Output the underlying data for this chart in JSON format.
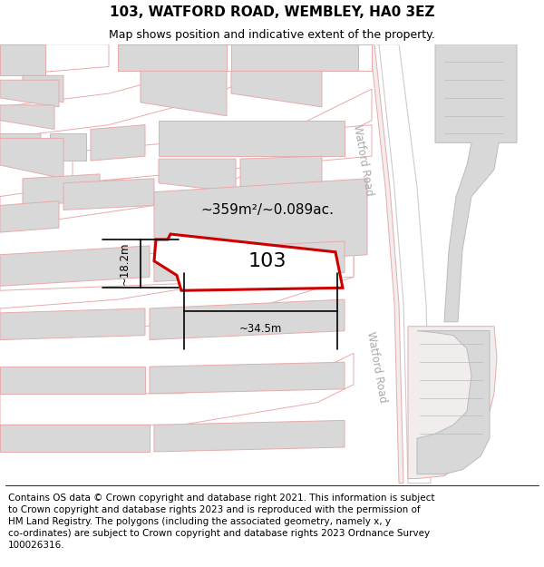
{
  "title": "103, WATFORD ROAD, WEMBLEY, HA0 3EZ",
  "subtitle": "Map shows position and indicative extent of the property.",
  "footer": "Contains OS data © Crown copyright and database right 2021. This information is subject\nto Crown copyright and database rights 2023 and is reproduced with the permission of\nHM Land Registry. The polygons (including the associated geometry, namely x, y\nco-ordinates) are subject to Crown copyright and database rights 2023 Ordnance Survey\n100026316.",
  "bg_color": "#f2eded",
  "road_fill": "#ffffff",
  "road_stroke": "#e8aaaa",
  "bld_fill": "#d8d8d8",
  "bld_stroke": "#d8aaaa",
  "bld_stroke2": "#bbbbbb",
  "plot_color": "#cc0000",
  "watford_road_label": "Watford Road",
  "area_label": "~359m²/~0.089ac.",
  "number_label": "103",
  "dim_width": "~34.5m",
  "dim_height": "~18.2m",
  "title_fontsize": 11,
  "subtitle_fontsize": 9,
  "footer_fontsize": 7.5,
  "label_color": "#aaaaaa"
}
